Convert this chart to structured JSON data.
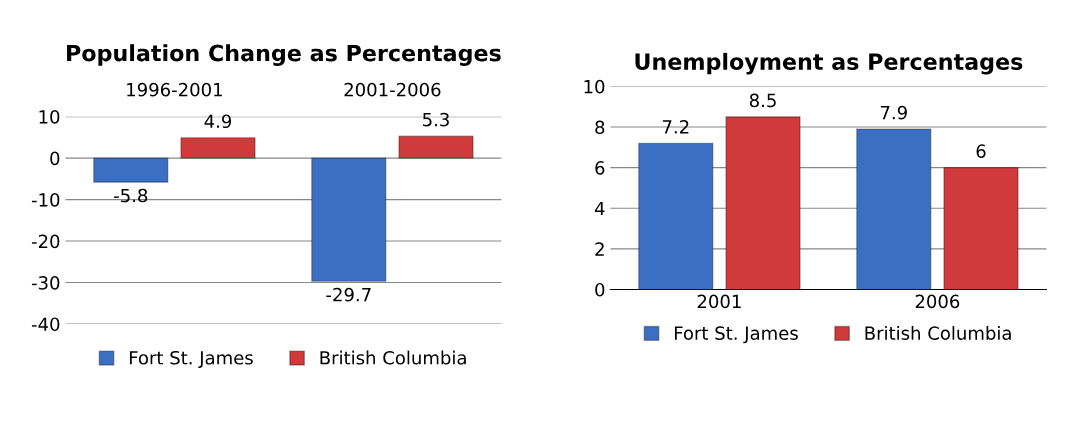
{
  "chart_data": [
    {
      "type": "bar",
      "title": "Population Change as Percentages",
      "categories": [
        "1996-2001",
        "2001-2006"
      ],
      "series": [
        {
          "name": "Fort St. James",
          "color": "#3a6fc4",
          "values": [
            -5.8,
            -29.7
          ]
        },
        {
          "name": "British Columbia",
          "color": "#d03a3a",
          "values": [
            4.9,
            5.3
          ]
        }
      ],
      "ylim": [
        -40,
        10
      ],
      "yticks": [
        -40,
        -30,
        -20,
        -10,
        0,
        10
      ],
      "grid": "y",
      "data_labels": true,
      "legend": "bottom"
    },
    {
      "type": "bar",
      "title": "Unemployment as Percentages",
      "categories": [
        "2001",
        "2006"
      ],
      "series": [
        {
          "name": "Fort St. James",
          "color": "#3a6fc4",
          "values": [
            7.2,
            7.9
          ]
        },
        {
          "name": "British Columbia",
          "color": "#d03a3a",
          "values": [
            8.5,
            6
          ]
        }
      ],
      "ylim": [
        0,
        10
      ],
      "yticks": [
        0,
        2,
        4,
        6,
        8,
        10
      ],
      "grid": "y",
      "data_labels": true,
      "legend": "bottom"
    }
  ]
}
